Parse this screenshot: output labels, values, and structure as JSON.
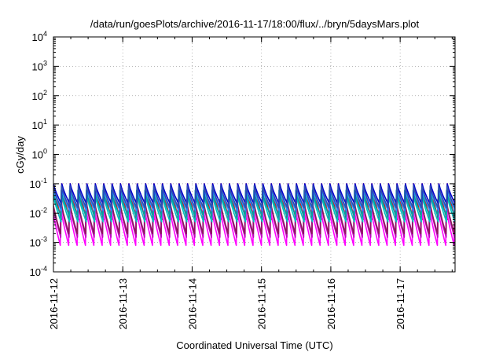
{
  "chart_data": {
    "type": "line",
    "title": "/data/run/goesPlots/archive/2016-11-17/18:00/flux/../bryn/5daysMars.plot",
    "xlabel": "Coordinated Universal Time (UTC)",
    "ylabel": "cGy/day",
    "yscale": "log",
    "ylim": [
      0.0001,
      10000
    ],
    "xlim": [
      "2016-11-12T00:00",
      "2016-11-17T19:00"
    ],
    "x_ticks": [
      "2016-11-12",
      "2016-11-13",
      "2016-11-14",
      "2016-11-15",
      "2016-11-16",
      "2016-11-17"
    ],
    "y_ticks": [
      {
        "value": 0.0001,
        "base": "10",
        "exp": "-4"
      },
      {
        "value": 0.001,
        "base": "10",
        "exp": "-3"
      },
      {
        "value": 0.01,
        "base": "10",
        "exp": "-2"
      },
      {
        "value": 0.1,
        "base": "10",
        "exp": "-1"
      },
      {
        "value": 1,
        "base": "10",
        "exp": "0"
      },
      {
        "value": 10,
        "base": "10",
        "exp": "1"
      },
      {
        "value": 100,
        "base": "10",
        "exp": "2"
      },
      {
        "value": 1000,
        "base": "10",
        "exp": "3"
      },
      {
        "value": 10000,
        "base": "10",
        "exp": "4"
      }
    ],
    "grid": true,
    "legend": "none",
    "sawtooth_period_hours": 2.9,
    "series": [
      {
        "color": "#ff0000",
        "peak": 0.1,
        "trough": 0.006
      },
      {
        "color": "#ff00ff",
        "peak": 0.018,
        "trough": 0.0008
      },
      {
        "color": "#c000c0",
        "peak": 0.025,
        "trough": 0.0015
      },
      {
        "color": "#8b1a5a",
        "peak": 0.03,
        "trough": 0.002
      },
      {
        "color": "#00bfbf",
        "peak": 0.045,
        "trough": 0.005
      },
      {
        "color": "#00a0a0",
        "peak": 0.06,
        "trough": 0.008
      },
      {
        "color": "#1e90ff",
        "peak": 0.07,
        "trough": 0.012
      },
      {
        "color": "#0000cd",
        "peak": 0.1,
        "trough": 0.02
      },
      {
        "color": "#3050b0",
        "peak": 0.085,
        "trough": 0.015
      }
    ]
  }
}
